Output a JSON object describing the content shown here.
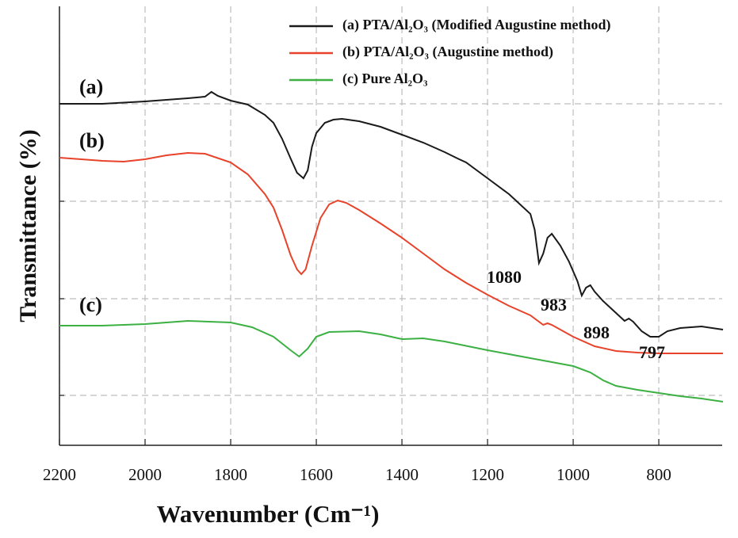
{
  "chart_data": {
    "type": "line",
    "x_label": "Wavenumber (Cm⁻¹)",
    "y_label": "Transmittance (%)",
    "xlim": [
      2200,
      652
    ],
    "xticks": [
      2200,
      2000,
      1800,
      1600,
      1400,
      1200,
      1000,
      800
    ],
    "ylim": [
      0,
      554
    ],
    "yticks": [
      63,
      185,
      308,
      431
    ],
    "grid": true,
    "legend": "upper right",
    "series": [
      {
        "name": "(a) PTA/Al₂O₃ (Modified Augustine method)",
        "color": "#1a1a1a",
        "x": [
          2200,
          2100,
          2000,
          1900,
          1860,
          1845,
          1830,
          1800,
          1760,
          1720,
          1700,
          1680,
          1660,
          1645,
          1630,
          1620,
          1610,
          1600,
          1580,
          1560,
          1540,
          1500,
          1450,
          1400,
          1350,
          1300,
          1270,
          1250,
          1200,
          1150,
          1100,
          1090,
          1080,
          1070,
          1060,
          1050,
          1030,
          1010,
          990,
          980,
          970,
          960,
          950,
          930,
          900,
          880,
          870,
          860,
          840,
          820,
          800,
          780,
          750,
          700,
          650
        ],
        "values": [
          431,
          431,
          434,
          438,
          440,
          446,
          441,
          435,
          430,
          417,
          407,
          387,
          362,
          344,
          337,
          347,
          377,
          394,
          407,
          411,
          412,
          409,
          402,
          392,
          382,
          370,
          362,
          357,
          337,
          317,
          292,
          272,
          230,
          242,
          262,
          267,
          252,
          232,
          207,
          189,
          199,
          202,
          194,
          182,
          167,
          157,
          160,
          156,
          144,
          137,
          137,
          144,
          148,
          150,
          146
        ]
      },
      {
        "name": "(b) PTA/Al₂O₃ (Augustine method)",
        "color": "#e8432a",
        "x": [
          2200,
          2100,
          2050,
          2000,
          1950,
          1900,
          1860,
          1800,
          1760,
          1720,
          1700,
          1680,
          1660,
          1645,
          1635,
          1625,
          1610,
          1590,
          1570,
          1550,
          1530,
          1500,
          1450,
          1400,
          1350,
          1300,
          1250,
          1200,
          1150,
          1100,
          1070,
          1060,
          1050,
          1000,
          950,
          900,
          850,
          800,
          700,
          650
        ],
        "values": [
          363,
          359,
          358,
          361,
          366,
          369,
          368,
          357,
          342,
          317,
          300,
          272,
          240,
          222,
          216,
          222,
          252,
          287,
          304,
          309,
          306,
          297,
          280,
          262,
          242,
          222,
          205,
          190,
          176,
          164,
          152,
          154,
          152,
          137,
          125,
          119,
          117,
          116,
          116,
          116
        ]
      },
      {
        "name": "(c) Pure Al₂O₃",
        "color": "#3cb043",
        "x": [
          2200,
          2100,
          2000,
          1900,
          1800,
          1750,
          1700,
          1660,
          1640,
          1620,
          1600,
          1570,
          1500,
          1450,
          1400,
          1350,
          1300,
          1200,
          1100,
          1000,
          960,
          930,
          900,
          850,
          800,
          750,
          700,
          650
        ],
        "values": [
          151,
          151,
          153,
          157,
          155,
          149,
          137,
          120,
          112,
          122,
          137,
          143,
          144,
          140,
          134,
          135,
          131,
          120,
          110,
          100,
          92,
          82,
          75,
          70,
          66,
          62,
          59,
          55
        ]
      }
    ],
    "annotations": [
      "(a)",
      "(b)",
      "(c)",
      "1080",
      "983",
      "898",
      "797"
    ]
  }
}
